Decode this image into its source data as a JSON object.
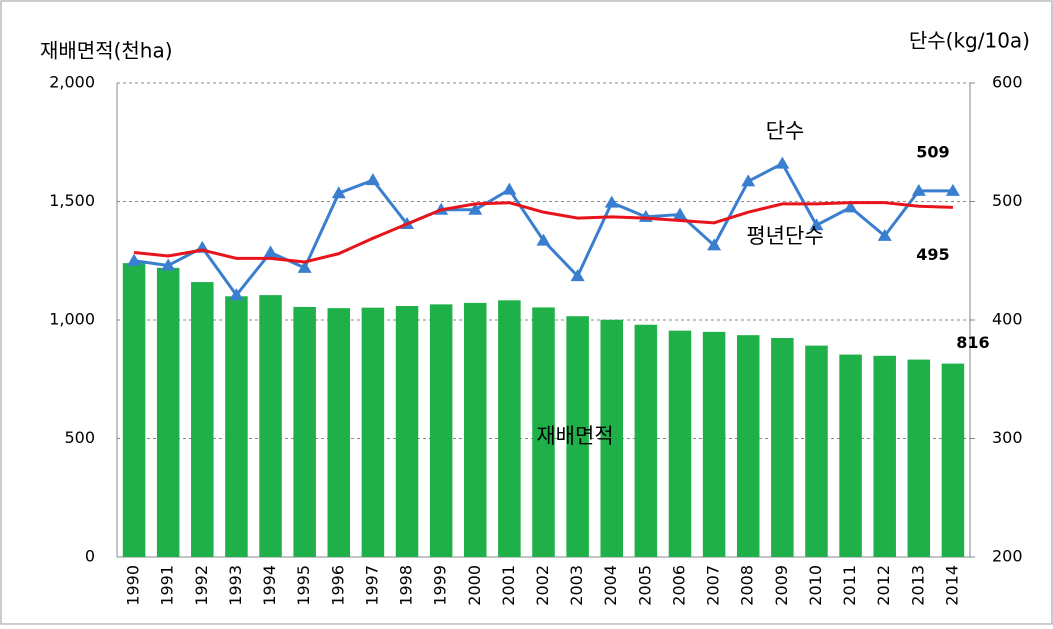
{
  "chart_data": {
    "type": "bar-line",
    "y_title": "재배면적(천ha)",
    "y2_title": "단수(kg/10a)",
    "categories": [
      "1990",
      "1991",
      "1992",
      "1993",
      "1994",
      "1995",
      "1996",
      "1997",
      "1998",
      "1999",
      "2000",
      "2001",
      "2002",
      "2003",
      "2004",
      "2005",
      "2006",
      "2007",
      "2008",
      "2009",
      "2010",
      "2011",
      "2012",
      "2013",
      "2014"
    ],
    "series": [
      {
        "name": "재배면적",
        "type": "bar",
        "color": "#1fb04a",
        "label_last": true,
        "values": [
          1240,
          1220,
          1160,
          1100,
          1105,
          1055,
          1050,
          1052,
          1059,
          1066,
          1072,
          1083,
          1053,
          1016,
          1001,
          980,
          955,
          950,
          936,
          924,
          892,
          854,
          849,
          833,
          816
        ]
      },
      {
        "name": "단수",
        "type": "line",
        "axis": "y2",
        "color": "#3a7fcf",
        "marker": "triangle",
        "label_last": true,
        "values": [
          450,
          446,
          461,
          421,
          457,
          444,
          507,
          518,
          481,
          493,
          493,
          510,
          467,
          437,
          499,
          487,
          489,
          463,
          517,
          532,
          480,
          495,
          471,
          509,
          509
        ]
      },
      {
        "name": "평년단수",
        "type": "line",
        "axis": "y2",
        "color": "#e8141b",
        "label_last": true,
        "values": [
          457,
          454,
          459,
          452,
          452,
          449,
          456,
          469,
          481,
          493,
          498,
          499,
          491,
          486,
          487,
          486,
          484,
          482,
          491,
          498,
          498,
          499,
          499,
          496,
          495
        ]
      }
    ],
    "ylim": [
      0,
      2000
    ],
    "yticks": [
      0,
      500,
      {
        "value": 1000,
        "label": "1,000"
      },
      {
        "value": 1500,
        "label": "1,500"
      },
      {
        "value": 2000,
        "label": "2,000"
      }
    ],
    "y2lim": [
      200,
      600
    ],
    "y2ticks": [
      200,
      300,
      400,
      500,
      600
    ],
    "grid": true
  }
}
